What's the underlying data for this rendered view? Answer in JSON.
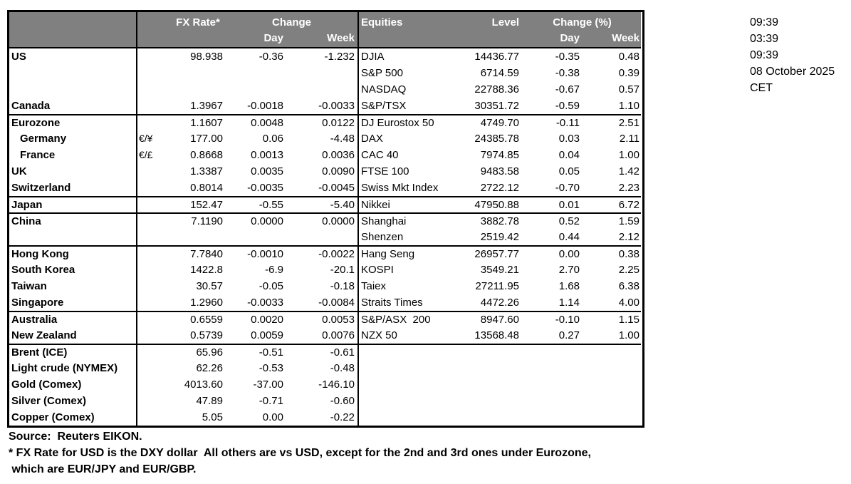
{
  "timestamps": {
    "lines": [
      "09:39",
      "03:39",
      "09:39",
      "08 October 2025",
      "CET"
    ]
  },
  "fx_table": {
    "header": {
      "rate": "FX Rate*",
      "change": "Change",
      "day": "Day",
      "week": "Week"
    },
    "rows": [
      {
        "name": "US",
        "pair": "",
        "rate": "98.938",
        "day": "-0.36",
        "week": "-1.232"
      },
      {
        "name": "",
        "pair": "",
        "rate": "",
        "day": "",
        "week": ""
      },
      {
        "name": "",
        "pair": "",
        "rate": "",
        "day": "",
        "week": ""
      },
      {
        "name": "Canada",
        "pair": "",
        "rate": "1.3967",
        "day": "-0.0018",
        "week": "-0.0033"
      },
      {
        "name": "Eurozone",
        "pair": "",
        "rate": "1.1607",
        "day": "0.0048",
        "week": "0.0122",
        "group": true
      },
      {
        "name": "Germany",
        "pair": "€/¥",
        "rate": "177.00",
        "day": "0.06",
        "week": "-4.48",
        "indent": true
      },
      {
        "name": "France",
        "pair": "€/£",
        "rate": "0.8668",
        "day": "0.0013",
        "week": "0.0036",
        "indent": true
      },
      {
        "name": "UK",
        "pair": "",
        "rate": "1.3387",
        "day": "0.0035",
        "week": "0.0090"
      },
      {
        "name": "Switzerland",
        "pair": "",
        "rate": "0.8014",
        "day": "-0.0035",
        "week": "-0.0045"
      },
      {
        "name": "Japan",
        "pair": "",
        "rate": "152.47",
        "day": "-0.55",
        "week": "-5.40",
        "group": true
      },
      {
        "name": "China",
        "pair": "",
        "rate": "7.1190",
        "day": "0.0000",
        "week": "0.0000",
        "group": true
      },
      {
        "name": "",
        "pair": "",
        "rate": "",
        "day": "",
        "week": ""
      },
      {
        "name": "Hong Kong",
        "pair": "",
        "rate": "7.7840",
        "day": "-0.0010",
        "week": "-0.0022",
        "group": true
      },
      {
        "name": "South Korea",
        "pair": "",
        "rate": "1422.8",
        "day": "-6.9",
        "week": "-20.1"
      },
      {
        "name": "Taiwan",
        "pair": "",
        "rate": "30.57",
        "day": "-0.05",
        "week": "-0.18"
      },
      {
        "name": "Singapore",
        "pair": "",
        "rate": "1.2960",
        "day": "-0.0033",
        "week": "-0.0084"
      },
      {
        "name": "Australia",
        "pair": "",
        "rate": "0.6559",
        "day": "0.0020",
        "week": "0.0053",
        "group": true
      },
      {
        "name": "New Zealand",
        "pair": "",
        "rate": "0.5739",
        "day": "0.0059",
        "week": "0.0076"
      },
      {
        "name": "Brent (ICE)",
        "pair": "",
        "rate": "65.96",
        "day": "-0.51",
        "week": "-0.61",
        "group": true
      },
      {
        "name": "Light crude (NYMEX)",
        "pair": "",
        "rate": "62.26",
        "day": "-0.53",
        "week": "-0.48"
      },
      {
        "name": "Gold (Comex)",
        "pair": "",
        "rate": "4013.60",
        "day": "-37.00",
        "week": "-146.10"
      },
      {
        "name": "Silver (Comex)",
        "pair": "",
        "rate": "47.89",
        "day": "-0.71",
        "week": "-0.60"
      },
      {
        "name": "Copper (Comex)",
        "pair": "",
        "rate": "5.05",
        "day": "0.00",
        "week": "-0.22"
      }
    ]
  },
  "equity_table": {
    "header": {
      "equities": "Equities",
      "level": "Level",
      "change": "Change (%)",
      "day": "Day",
      "week": "Week"
    },
    "rows": [
      {
        "name": "DJIA",
        "level": "14436.77",
        "day": "-0.35",
        "week": "0.48"
      },
      {
        "name": "S&P 500",
        "level": "6714.59",
        "day": "-0.38",
        "week": "0.39"
      },
      {
        "name": "NASDAQ",
        "level": "22788.36",
        "day": "-0.67",
        "week": "0.57"
      },
      {
        "name": "S&P/TSX",
        "level": "30351.72",
        "day": "-0.59",
        "week": "1.10"
      },
      {
        "name": "DJ Eurostox 50",
        "level": "4749.70",
        "day": "-0.11",
        "week": "2.51",
        "group": true
      },
      {
        "name": "DAX",
        "level": "24385.78",
        "day": "0.03",
        "week": "2.11"
      },
      {
        "name": "CAC 40",
        "level": "7974.85",
        "day": "0.04",
        "week": "1.00"
      },
      {
        "name": "FTSE 100",
        "level": "9483.58",
        "day": "0.05",
        "week": "1.42"
      },
      {
        "name": "Swiss Mkt Index",
        "level": "2722.12",
        "day": "-0.70",
        "week": "2.23"
      },
      {
        "name": "Nikkei",
        "level": "47950.88",
        "day": "0.01",
        "week": "6.72",
        "group": true
      },
      {
        "name": "Shanghai",
        "level": "3882.78",
        "day": "0.52",
        "week": "1.59",
        "group": true
      },
      {
        "name": "Shenzen",
        "level": "2519.42",
        "day": "0.44",
        "week": "2.12"
      },
      {
        "name": "Hang Seng",
        "level": "26957.77",
        "day": "0.00",
        "week": "0.38",
        "group": true
      },
      {
        "name": "KOSPI",
        "level": "3549.21",
        "day": "2.70",
        "week": "2.25"
      },
      {
        "name": "Taiex",
        "level": "27211.95",
        "day": "1.68",
        "week": "6.38"
      },
      {
        "name": "Straits Times",
        "level": "4472.26",
        "day": "1.14",
        "week": "4.00"
      },
      {
        "name": "S&P/ASX  200",
        "level": "8947.60",
        "day": "-0.10",
        "week": "1.15",
        "group": true
      },
      {
        "name": "NZX 50",
        "level": "13568.48",
        "day": "0.27",
        "week": "1.00"
      }
    ]
  },
  "footnotes": {
    "source": "Source:  Reuters EIKON.",
    "line1": "* FX Rate for USD is the DXY dollar  All others are vs USD, except for the 2nd and 3rd ones under Eurozone,",
    "line2": " which are EUR/JPY and EUR/GBP."
  },
  "colors": {
    "header_bg": "#808080",
    "header_text": "#ffffff",
    "border": "#000000"
  }
}
